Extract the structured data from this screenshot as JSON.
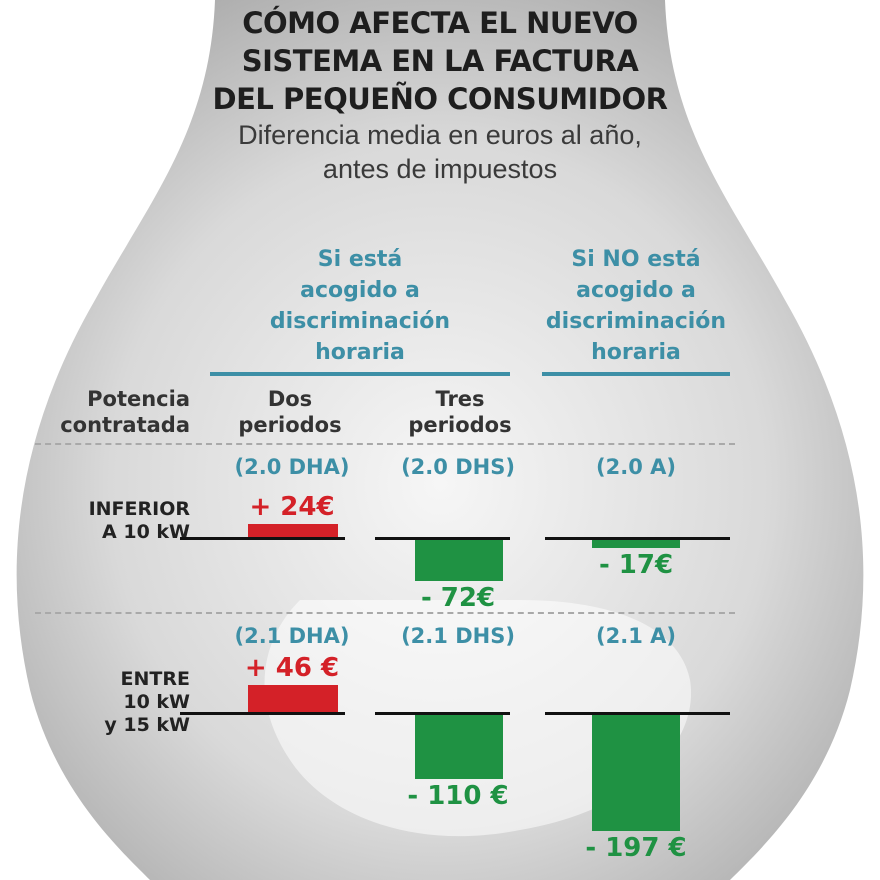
{
  "title_lines": [
    "CÓMO AFECTA EL NUEVO",
    "SISTEMA EN LA FACTURA",
    "DEL PEQUEÑO CONSUMIDOR"
  ],
  "subtitle_lines": [
    "Diferencia media en euros al año,",
    "antes de impuestos"
  ],
  "groups": [
    {
      "lines": [
        "Si está",
        "acogido a",
        "discriminación",
        "horaria"
      ]
    },
    {
      "lines": [
        "Si NO está",
        "acogido a",
        "discriminación",
        "horaria"
      ]
    }
  ],
  "potencia_label": [
    "Potencia",
    "contratada"
  ],
  "columns": [
    {
      "lines": [
        "Dos",
        "periodos"
      ]
    },
    {
      "lines": [
        "Tres",
        "periodos"
      ]
    },
    {
      "lines": []
    }
  ],
  "colors": {
    "positive": "#d42128",
    "negative": "#1f9243",
    "accent": "#3d8fa6",
    "bulb": "#b9b9b9"
  },
  "chart_data": {
    "type": "bar",
    "title": "CÓMO AFECTA EL NUEVO SISTEMA EN LA FACTURA DEL PEQUEÑO CONSUMIDOR",
    "subtitle": "Diferencia media en euros al año, antes de impuestos",
    "unit": "€",
    "rows": [
      {
        "label_lines": [
          "INFERIOR",
          "A 10 kW"
        ],
        "bars": [
          {
            "code": "(2.0 DHA)",
            "value": 24,
            "label": "+ 24€"
          },
          {
            "code": "(2.0 DHS)",
            "value": -72,
            "label": "- 72€"
          },
          {
            "code": "(2.0 A)",
            "value": -17,
            "label": "- 17€"
          }
        ]
      },
      {
        "label_lines": [
          "ENTRE",
          "10 kW",
          "y 15 kW"
        ],
        "bars": [
          {
            "code": "(2.1 DHA)",
            "value": 46,
            "label": "+ 46 €"
          },
          {
            "code": "(2.1 DHS)",
            "value": -110,
            "label": "- 110 €"
          },
          {
            "code": "(2.1 A)",
            "value": -197,
            "label": "- 197 €"
          }
        ]
      }
    ]
  }
}
